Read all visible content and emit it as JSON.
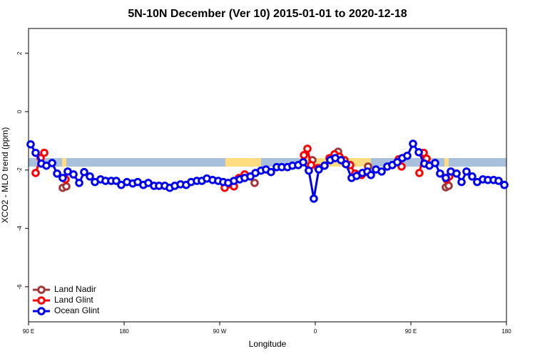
{
  "chart_data": {
    "type": "line",
    "title": "5N-10N December (Ver 10)   2015-01-01 to 2020-12-18",
    "x_label": "Longitude",
    "y_label": "XCO2 - MLO trend (ppm)",
    "xlim": [
      90,
      540
    ],
    "xticks": [
      {
        "value": 90,
        "label": "90 E"
      },
      180,
      {
        "value": 270,
        "label": "90 W"
      },
      {
        "value": 360,
        "label": "0"
      },
      {
        "value": 450,
        "label": "90 E"
      },
      {
        "value": 540,
        "label": "180"
      }
    ],
    "ylim": [
      -7.2,
      2.85
    ],
    "yticks": [
      -6,
      -4,
      -2,
      0,
      2
    ],
    "grid": false,
    "legend": "bottomleft",
    "series": [
      {
        "name": "Land Nadir",
        "color": "#a0383a",
        "x": [
          122.2,
          125.6,
          null,
          302.9,
          null,
          357.3,
          null,
          381.5,
          null,
          409.7,
          null,
          482.9,
          485.6
        ],
        "values": [
          -2.61,
          -2.56,
          null,
          -2.44,
          null,
          -1.66,
          null,
          -1.37,
          null,
          -1.88,
          null,
          -2.59,
          -2.54
        ]
      },
      {
        "name": "Land Glint",
        "color": "#ff0000",
        "x": [
          96.7,
          101.4,
          104.8,
          null,
          124.9,
          null,
          274.7,
          283.4,
          288.1,
          293.5,
          null,
          349.3,
          352.6,
          356.0,
          362.7,
          368.7,
          373.4,
          378.1,
          382.8,
          387.5,
          392.9,
          397.6,
          403.6,
          408.3,
          null,
          438.6,
          441.2,
          null,
          458.0,
          462.1,
          464.8,
          null,
          483.6,
          486.2
        ],
        "values": [
          -2.1,
          -1.59,
          -1.41,
          null,
          -2.32,
          null,
          -2.61,
          -2.56,
          -2.27,
          -2.15,
          null,
          -1.49,
          -1.27,
          -1.83,
          -1.93,
          -1.85,
          -1.59,
          -1.46,
          -1.54,
          -1.66,
          -1.83,
          -2.12,
          -2.17,
          -2.07,
          null,
          -1.63,
          -1.88,
          null,
          -2.1,
          -1.41,
          -1.61,
          null,
          -2.32,
          -2.22
        ]
      },
      {
        "name": "Ocean Glint",
        "color": "#0000ee",
        "x": [
          92.0,
          96.7,
          102.1,
          106.8,
          112.2,
          116.9,
          122.2,
          126.9,
          132.3,
          137.7,
          142.4,
          147.8,
          152.5,
          157.8,
          162.5,
          167.9,
          172.6,
          177.3,
          182.7,
          188.1,
          192.8,
          198.1,
          202.8,
          208.2,
          212.9,
          218.3,
          223.0,
          227.7,
          233.1,
          238.4,
          243.1,
          248.5,
          253.2,
          257.9,
          263.3,
          268.6,
          273.3,
          278.0,
          283.4,
          288.8,
          293.5,
          298.9,
          303.6,
          308.9,
          313.6,
          318.3,
          323.7,
          328.4,
          333.8,
          338.5,
          343.9,
          348.6,
          353.9,
          358.6,
          363.3,
          368.7,
          374.1,
          378.8,
          384.2,
          388.9,
          394.2,
          398.9,
          404.3,
          409.0,
          412.4,
          417.1,
          422.5,
          427.8,
          432.5,
          437.2,
          441.9,
          446.6,
          452.0,
          457.4,
          462.7,
          467.4,
          472.8,
          477.5,
          482.9,
          487.6,
          493.0,
          497.7,
          502.4,
          507.7,
          512.4,
          517.8,
          522.5,
          527.9,
          532.6,
          538.0
        ],
        "values": [
          -1.12,
          -1.41,
          -1.78,
          -1.85,
          -1.76,
          -2.12,
          -2.27,
          -2.05,
          -2.15,
          -2.44,
          -2.07,
          -2.22,
          -2.41,
          -2.32,
          -2.37,
          -2.37,
          -2.37,
          -2.51,
          -2.41,
          -2.46,
          -2.41,
          -2.51,
          -2.44,
          -2.54,
          -2.54,
          -2.54,
          -2.61,
          -2.54,
          -2.49,
          -2.51,
          -2.41,
          -2.37,
          -2.37,
          -2.29,
          -2.34,
          -2.37,
          -2.41,
          -2.44,
          -2.37,
          -2.32,
          -2.27,
          -2.22,
          -2.1,
          -2.02,
          -1.98,
          -2.07,
          -1.9,
          -1.9,
          -1.9,
          -1.85,
          -1.83,
          -1.73,
          -2.02,
          -2.98,
          -1.98,
          -1.85,
          -1.66,
          -1.59,
          -1.66,
          -1.8,
          -2.27,
          -2.2,
          -2.1,
          -2.05,
          -2.17,
          -1.98,
          -2.05,
          -1.88,
          -1.83,
          -1.73,
          -1.59,
          -1.51,
          -1.1,
          -1.39,
          -1.78,
          -1.85,
          -1.76,
          -2.12,
          -2.27,
          -2.05,
          -2.12,
          -2.41,
          -2.05,
          -2.22,
          -2.41,
          -2.32,
          -2.34,
          -2.34,
          -2.37,
          -2.51
        ]
      }
    ]
  }
}
